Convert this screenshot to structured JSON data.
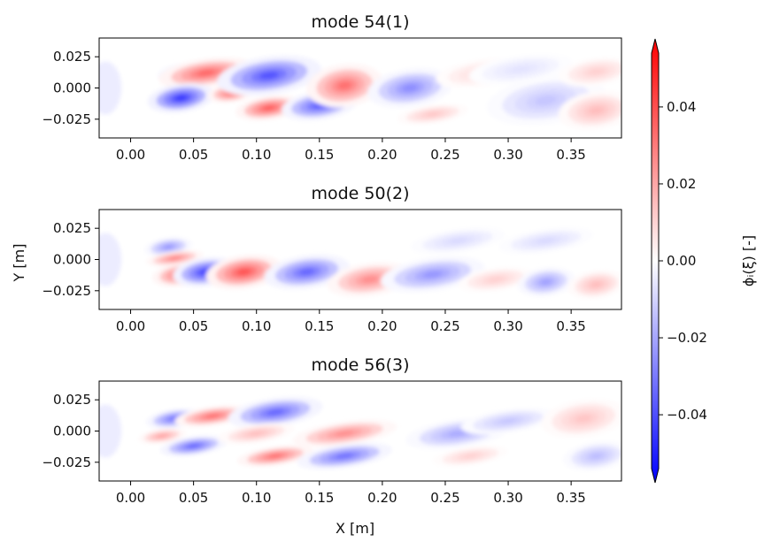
{
  "chart_data": {
    "type": "heatmap",
    "xlabel": "X [m]",
    "ylabel": "Y [m]",
    "xlim": [
      -0.025,
      0.39
    ],
    "ylim": [
      -0.04,
      0.04
    ],
    "x_ticks": [
      "0.00",
      "0.05",
      "0.10",
      "0.15",
      "0.20",
      "0.25",
      "0.30",
      "0.35"
    ],
    "y_ticks": [
      "0.025",
      "0.000",
      "−0.025"
    ],
    "colorbar": {
      "label": "ϕᵢ(ξ) [-]",
      "range": [
        -0.054,
        0.054
      ],
      "ticks": [
        "0.04",
        "0.02",
        "0.00",
        "−0.02",
        "−0.04"
      ],
      "tick_values": [
        0.04,
        0.02,
        0.0,
        -0.02,
        -0.04
      ],
      "colormap": "bwr",
      "colors": {
        "negative": "#0000ff",
        "zero": "#ffffff",
        "positive": "#ff0000"
      }
    },
    "panels": [
      {
        "title": "mode 54(1)",
        "blobs": [
          {
            "x": 0.04,
            "y": 0.012,
            "v": -0.022,
            "sx": 0.01,
            "sy": 0.004
          },
          {
            "x": 0.06,
            "y": 0.012,
            "v": 0.032,
            "sx": 0.02,
            "sy": 0.006
          },
          {
            "x": 0.04,
            "y": -0.008,
            "v": -0.042,
            "sx": 0.014,
            "sy": 0.006
          },
          {
            "x": 0.08,
            "y": -0.004,
            "v": 0.03,
            "sx": 0.01,
            "sy": 0.004
          },
          {
            "x": 0.11,
            "y": 0.01,
            "v": -0.036,
            "sx": 0.022,
            "sy": 0.008
          },
          {
            "x": 0.11,
            "y": -0.016,
            "v": 0.034,
            "sx": 0.014,
            "sy": 0.005
          },
          {
            "x": 0.15,
            "y": -0.014,
            "v": -0.034,
            "sx": 0.016,
            "sy": 0.006
          },
          {
            "x": 0.17,
            "y": 0.002,
            "v": 0.03,
            "sx": 0.016,
            "sy": 0.009
          },
          {
            "x": 0.222,
            "y": 0.0,
            "v": -0.024,
            "sx": 0.018,
            "sy": 0.008
          },
          {
            "x": 0.24,
            "y": -0.021,
            "v": 0.012,
            "sx": 0.015,
            "sy": 0.004
          },
          {
            "x": 0.28,
            "y": 0.012,
            "v": 0.008,
            "sx": 0.02,
            "sy": 0.006
          },
          {
            "x": 0.33,
            "y": -0.01,
            "v": -0.012,
            "sx": 0.025,
            "sy": 0.01
          },
          {
            "x": 0.31,
            "y": 0.015,
            "v": -0.006,
            "sx": 0.022,
            "sy": 0.006
          },
          {
            "x": 0.37,
            "y": -0.018,
            "v": 0.014,
            "sx": 0.016,
            "sy": 0.008
          },
          {
            "x": 0.37,
            "y": 0.013,
            "v": 0.01,
            "sx": 0.016,
            "sy": 0.006
          }
        ]
      },
      {
        "title": "mode 50(2)",
        "blobs": [
          {
            "x": 0.03,
            "y": 0.01,
            "v": -0.022,
            "sx": 0.01,
            "sy": 0.004
          },
          {
            "x": 0.04,
            "y": -0.012,
            "v": 0.032,
            "sx": 0.012,
            "sy": 0.005
          },
          {
            "x": 0.035,
            "y": 0.001,
            "v": 0.026,
            "sx": 0.012,
            "sy": 0.003
          },
          {
            "x": 0.06,
            "y": -0.01,
            "v": -0.04,
            "sx": 0.014,
            "sy": 0.006
          },
          {
            "x": 0.09,
            "y": -0.01,
            "v": 0.036,
            "sx": 0.016,
            "sy": 0.007
          },
          {
            "x": 0.14,
            "y": -0.01,
            "v": -0.032,
            "sx": 0.018,
            "sy": 0.007
          },
          {
            "x": 0.19,
            "y": -0.016,
            "v": 0.024,
            "sx": 0.018,
            "sy": 0.007
          },
          {
            "x": 0.24,
            "y": -0.012,
            "v": -0.022,
            "sx": 0.022,
            "sy": 0.007
          },
          {
            "x": 0.29,
            "y": -0.016,
            "v": 0.01,
            "sx": 0.016,
            "sy": 0.005
          },
          {
            "x": 0.33,
            "y": -0.018,
            "v": -0.02,
            "sx": 0.012,
            "sy": 0.006
          },
          {
            "x": 0.37,
            "y": -0.02,
            "v": 0.014,
            "sx": 0.012,
            "sy": 0.006
          },
          {
            "x": 0.26,
            "y": 0.015,
            "v": -0.008,
            "sx": 0.02,
            "sy": 0.005
          },
          {
            "x": 0.33,
            "y": 0.015,
            "v": -0.008,
            "sx": 0.02,
            "sy": 0.005
          }
        ]
      },
      {
        "title": "mode 56(3)",
        "blobs": [
          {
            "x": 0.035,
            "y": 0.01,
            "v": -0.03,
            "sx": 0.012,
            "sy": 0.004
          },
          {
            "x": 0.065,
            "y": 0.012,
            "v": 0.03,
            "sx": 0.016,
            "sy": 0.004
          },
          {
            "x": 0.025,
            "y": -0.004,
            "v": 0.02,
            "sx": 0.01,
            "sy": 0.003
          },
          {
            "x": 0.05,
            "y": -0.012,
            "v": -0.032,
            "sx": 0.014,
            "sy": 0.004
          },
          {
            "x": 0.115,
            "y": 0.015,
            "v": -0.032,
            "sx": 0.02,
            "sy": 0.006
          },
          {
            "x": 0.115,
            "y": -0.02,
            "v": 0.03,
            "sx": 0.016,
            "sy": 0.004
          },
          {
            "x": 0.1,
            "y": -0.002,
            "v": 0.014,
            "sx": 0.016,
            "sy": 0.004
          },
          {
            "x": 0.17,
            "y": -0.002,
            "v": 0.024,
            "sx": 0.022,
            "sy": 0.005
          },
          {
            "x": 0.17,
            "y": -0.02,
            "v": -0.03,
            "sx": 0.02,
            "sy": 0.005
          },
          {
            "x": 0.26,
            "y": -0.002,
            "v": -0.018,
            "sx": 0.022,
            "sy": 0.006
          },
          {
            "x": 0.27,
            "y": -0.02,
            "v": 0.01,
            "sx": 0.016,
            "sy": 0.004
          },
          {
            "x": 0.3,
            "y": 0.008,
            "v": -0.012,
            "sx": 0.02,
            "sy": 0.005
          },
          {
            "x": 0.36,
            "y": 0.01,
            "v": 0.012,
            "sx": 0.018,
            "sy": 0.008
          },
          {
            "x": 0.37,
            "y": -0.02,
            "v": -0.014,
            "sx": 0.014,
            "sy": 0.006
          }
        ]
      }
    ]
  }
}
